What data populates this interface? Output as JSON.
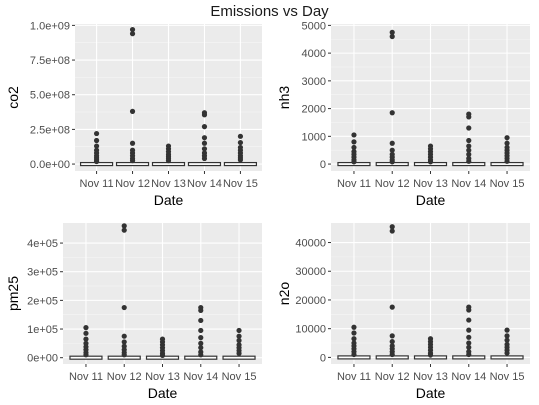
{
  "title": "Emissions vs Day",
  "colors": {
    "panel": "#EBEBEB",
    "grid_major": "#FFFFFF",
    "grid_minor": "#F5F5F5",
    "ink": "#333333",
    "tick_text": "#4D4D4D"
  },
  "chart_data": [
    {
      "type": "box",
      "xlabel": "Date",
      "ylabel": "co2",
      "categories": [
        "Nov 11",
        "Nov 12",
        "Nov 13",
        "Nov 14",
        "Nov 15"
      ],
      "yticks": [
        0,
        250000000,
        500000000,
        750000000,
        1000000000
      ],
      "ytick_labels": [
        "0.0e+00",
        "2.5e+08",
        "5.0e+08",
        "7.5e+08",
        "1.0e+09"
      ],
      "ylim": [
        -50000000,
        1010000000
      ],
      "outliers": [
        [
          220000000,
          170000000,
          130000000,
          100000000,
          80000000,
          60000000,
          45000000,
          30000000,
          18000000
        ],
        [
          970000000,
          940000000,
          380000000,
          150000000,
          100000000,
          80000000,
          60000000,
          40000000,
          25000000
        ],
        [
          130000000,
          110000000,
          90000000,
          70000000,
          55000000,
          40000000,
          25000000
        ],
        [
          370000000,
          355000000,
          270000000,
          190000000,
          150000000,
          110000000,
          80000000,
          60000000,
          40000000
        ],
        [
          200000000,
          155000000,
          120000000,
          100000000,
          80000000,
          60000000,
          45000000,
          30000000
        ]
      ]
    },
    {
      "type": "box",
      "xlabel": "Date",
      "ylabel": "nh3",
      "categories": [
        "Nov 11",
        "Nov 12",
        "Nov 13",
        "Nov 14",
        "Nov 15"
      ],
      "yticks": [
        0,
        1000,
        2000,
        3000,
        4000,
        5000
      ],
      "ytick_labels": [
        "0",
        "1000",
        "2000",
        "3000",
        "4000",
        "5000"
      ],
      "ylim": [
        -250,
        5050
      ],
      "outliers": [
        [
          1050,
          800,
          600,
          450,
          350,
          250,
          150,
          80
        ],
        [
          4750,
          4600,
          1850,
          750,
          500,
          350,
          250,
          150,
          80
        ],
        [
          650,
          550,
          450,
          350,
          250,
          150,
          80
        ],
        [
          1800,
          1700,
          1300,
          850,
          650,
          500,
          350,
          200,
          100
        ],
        [
          950,
          750,
          600,
          500,
          400,
          300,
          200,
          100
        ]
      ]
    },
    {
      "type": "box",
      "xlabel": "Date",
      "ylabel": "pm25",
      "categories": [
        "Nov 11",
        "Nov 12",
        "Nov 13",
        "Nov 14",
        "Nov 15"
      ],
      "yticks": [
        0,
        100000,
        200000,
        300000,
        400000
      ],
      "ytick_labels": [
        "0e+00",
        "1e+05",
        "2e+05",
        "3e+05",
        "4e+05"
      ],
      "ylim": [
        -22000,
        470000
      ],
      "outliers": [
        [
          105000,
          85000,
          65000,
          50000,
          38000,
          28000,
          18000,
          10000
        ],
        [
          460000,
          445000,
          175000,
          75000,
          55000,
          40000,
          28000,
          18000,
          10000
        ],
        [
          65000,
          55000,
          45000,
          35000,
          25000,
          15000,
          8000
        ],
        [
          175000,
          165000,
          130000,
          95000,
          70000,
          50000,
          35000,
          20000,
          10000
        ],
        [
          95000,
          75000,
          60000,
          45000,
          35000,
          25000,
          15000
        ]
      ]
    },
    {
      "type": "box",
      "xlabel": "Date",
      "ylabel": "n2o",
      "categories": [
        "Nov 11",
        "Nov 12",
        "Nov 13",
        "Nov 14",
        "Nov 15"
      ],
      "yticks": [
        0,
        10000,
        20000,
        30000,
        40000
      ],
      "ytick_labels": [
        "0",
        "10000",
        "20000",
        "30000",
        "40000"
      ],
      "ylim": [
        -2300,
        46800
      ],
      "outliers": [
        [
          10500,
          8500,
          6500,
          5000,
          4000,
          3000,
          2000,
          1000
        ],
        [
          45500,
          44000,
          17500,
          7500,
          5500,
          4000,
          3000,
          2000,
          1000
        ],
        [
          6500,
          5500,
          4500,
          3500,
          2500,
          1500,
          800
        ],
        [
          17500,
          16500,
          13000,
          9500,
          7000,
          5000,
          3500,
          2000,
          1000
        ],
        [
          9500,
          7500,
          6000,
          4500,
          3500,
          2500,
          1500
        ]
      ]
    }
  ]
}
